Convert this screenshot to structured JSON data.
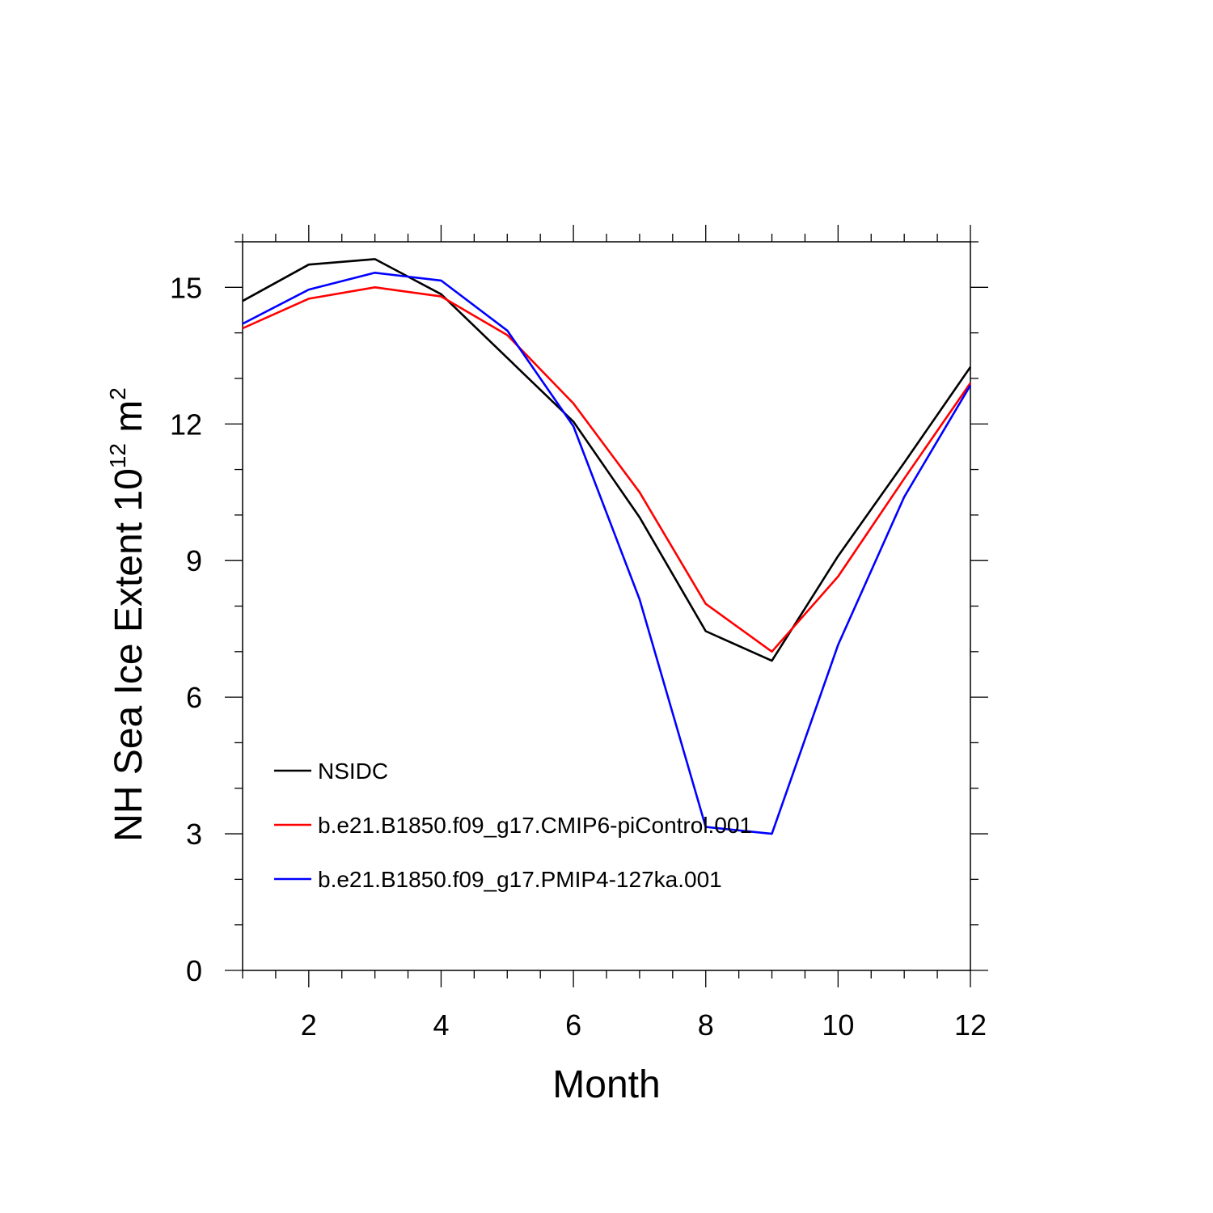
{
  "chart_data": {
    "type": "line",
    "title": "",
    "xlabel": "Month",
    "ylabel": "NH Sea Ice Extent 10",
    "ylabel_sup1": "12",
    "ylabel_mid": " m",
    "ylabel_sup2": "2",
    "xlim": [
      1,
      12
    ],
    "ylim": [
      0,
      16
    ],
    "xticks": [
      2,
      4,
      6,
      8,
      10,
      12
    ],
    "yticks": [
      0,
      3,
      6,
      9,
      12,
      15
    ],
    "grid": false,
    "legend_position": "bottom-left",
    "x": [
      1,
      2,
      3,
      4,
      5,
      6,
      7,
      8,
      9,
      10,
      11,
      12
    ],
    "series": [
      {
        "name": "NSIDC",
        "color": "#000000",
        "values": [
          14.7,
          15.5,
          15.62,
          14.85,
          13.45,
          12.05,
          9.95,
          7.45,
          6.8,
          9.1,
          11.15,
          13.25
        ]
      },
      {
        "name": "b.e21.B1850.f09_g17.CMIP6-piControl.001",
        "color": "#ff0000",
        "values": [
          14.1,
          14.75,
          15.0,
          14.8,
          13.95,
          12.45,
          10.5,
          8.05,
          7.0,
          8.65,
          10.8,
          12.9
        ]
      },
      {
        "name": "b.e21.B1850.f09_g17.PMIP4-127ka.001",
        "color": "#0000ff",
        "values": [
          14.2,
          14.95,
          15.32,
          15.15,
          14.05,
          11.95,
          8.15,
          3.15,
          3.0,
          7.15,
          10.4,
          12.85
        ]
      }
    ]
  }
}
